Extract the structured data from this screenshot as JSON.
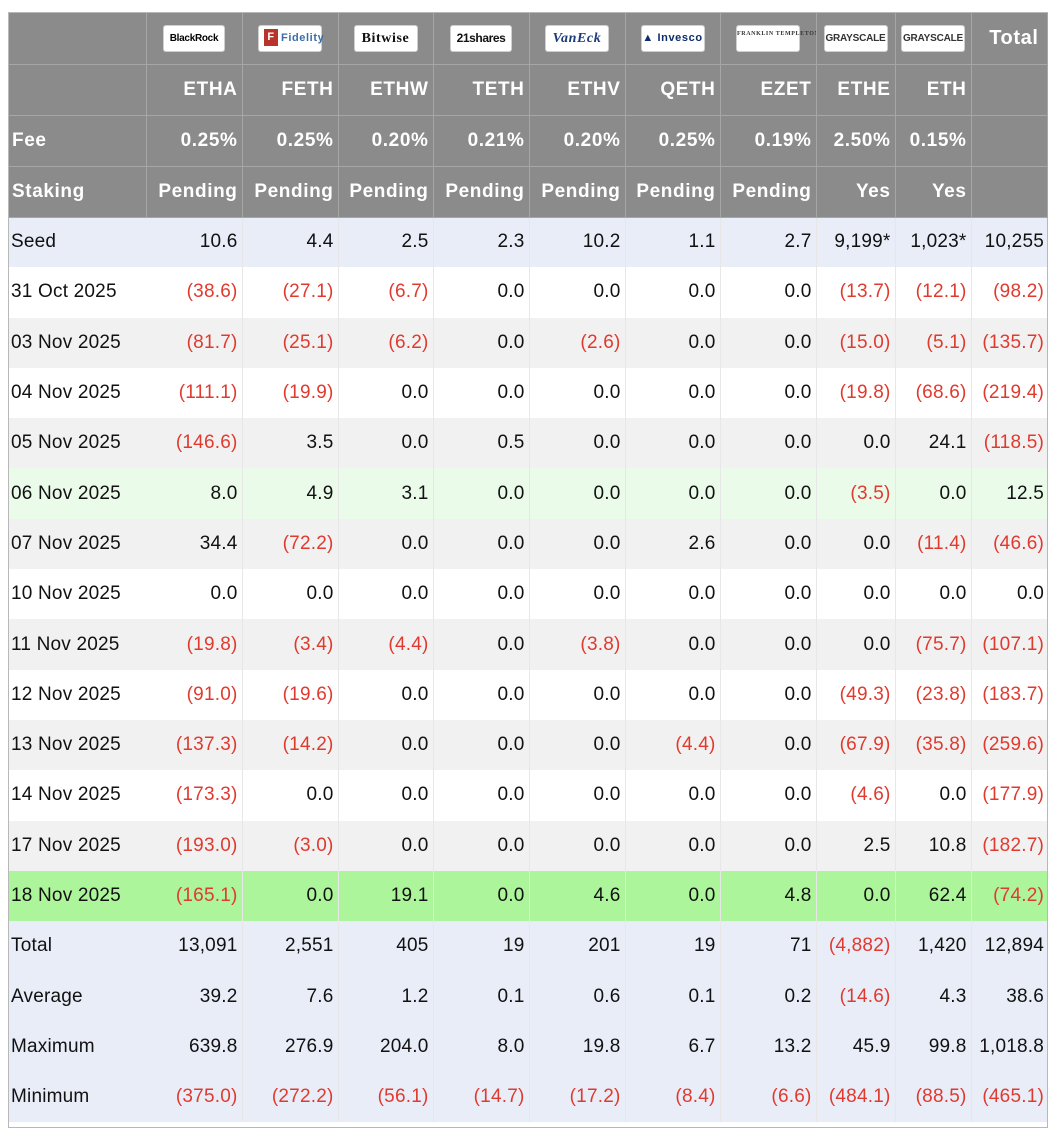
{
  "header": {
    "logos": [
      {
        "text": "BlackRock",
        "icon": "blackrock-logo"
      },
      {
        "text": "Fidelity",
        "icon": "fidelity-logo"
      },
      {
        "text": "Bitwise",
        "icon": "bitwise-logo"
      },
      {
        "text": "21shares",
        "icon": "21shares-logo"
      },
      {
        "text": "VanEck",
        "icon": "vaneck-logo"
      },
      {
        "text": "Invesco",
        "icon": "invesco-logo"
      },
      {
        "text": "FRANKLIN TEMPLETON",
        "icon": "franklin-templeton-logo"
      },
      {
        "text": "GRAYSCALE",
        "icon": "grayscale-logo"
      },
      {
        "text": "GRAYSCALE",
        "icon": "grayscale-logo"
      }
    ],
    "total_label": "Total",
    "tickers": [
      "ETHA",
      "FETH",
      "ETHW",
      "TETH",
      "ETHV",
      "QETH",
      "EZET",
      "ETHE",
      "ETH"
    ],
    "fee_label": "Fee",
    "fees": [
      "0.25%",
      "0.25%",
      "0.20%",
      "0.21%",
      "0.20%",
      "0.25%",
      "0.19%",
      "2.50%",
      "0.15%"
    ],
    "staking_label": "Staking",
    "staking": [
      "Pending",
      "Pending",
      "Pending",
      "Pending",
      "Pending",
      "Pending",
      "Pending",
      "Yes",
      "Yes"
    ]
  },
  "rows": [
    {
      "label": "Seed",
      "style": "seed",
      "values": [
        "10.6",
        "4.4",
        "2.5",
        "2.3",
        "10.2",
        "1.1",
        "2.7",
        "9,199*",
        "1,023*",
        "10,255"
      ]
    },
    {
      "label": "31 Oct 2025",
      "style": "white",
      "values": [
        "(38.6)",
        "(27.1)",
        "(6.7)",
        "0.0",
        "0.0",
        "0.0",
        "0.0",
        "(13.7)",
        "(12.1)",
        "(98.2)"
      ]
    },
    {
      "label": "03 Nov 2025",
      "style": "gray",
      "values": [
        "(81.7)",
        "(25.1)",
        "(6.2)",
        "0.0",
        "(2.6)",
        "0.0",
        "0.0",
        "(15.0)",
        "(5.1)",
        "(135.7)"
      ]
    },
    {
      "label": "04 Nov 2025",
      "style": "white",
      "values": [
        "(111.1)",
        "(19.9)",
        "0.0",
        "0.0",
        "0.0",
        "0.0",
        "0.0",
        "(19.8)",
        "(68.6)",
        "(219.4)"
      ]
    },
    {
      "label": "05 Nov 2025",
      "style": "gray",
      "values": [
        "(146.6)",
        "3.5",
        "0.0",
        "0.5",
        "0.0",
        "0.0",
        "0.0",
        "0.0",
        "24.1",
        "(118.5)"
      ]
    },
    {
      "label": "06 Nov 2025",
      "style": "lightgreen",
      "values": [
        "8.0",
        "4.9",
        "3.1",
        "0.0",
        "0.0",
        "0.0",
        "0.0",
        "(3.5)",
        "0.0",
        "12.5"
      ]
    },
    {
      "label": "07 Nov 2025",
      "style": "gray",
      "values": [
        "34.4",
        "(72.2)",
        "0.0",
        "0.0",
        "0.0",
        "2.6",
        "0.0",
        "0.0",
        "(11.4)",
        "(46.6)"
      ]
    },
    {
      "label": "10 Nov 2025",
      "style": "white",
      "values": [
        "0.0",
        "0.0",
        "0.0",
        "0.0",
        "0.0",
        "0.0",
        "0.0",
        "0.0",
        "0.0",
        "0.0"
      ]
    },
    {
      "label": "11 Nov 2025",
      "style": "gray",
      "values": [
        "(19.8)",
        "(3.4)",
        "(4.4)",
        "0.0",
        "(3.8)",
        "0.0",
        "0.0",
        "0.0",
        "(75.7)",
        "(107.1)"
      ]
    },
    {
      "label": "12 Nov 2025",
      "style": "white",
      "values": [
        "(91.0)",
        "(19.6)",
        "0.0",
        "0.0",
        "0.0",
        "0.0",
        "0.0",
        "(49.3)",
        "(23.8)",
        "(183.7)"
      ]
    },
    {
      "label": "13 Nov 2025",
      "style": "gray",
      "values": [
        "(137.3)",
        "(14.2)",
        "0.0",
        "0.0",
        "0.0",
        "(4.4)",
        "0.0",
        "(67.9)",
        "(35.8)",
        "(259.6)"
      ]
    },
    {
      "label": "14 Nov 2025",
      "style": "white",
      "values": [
        "(173.3)",
        "0.0",
        "0.0",
        "0.0",
        "0.0",
        "0.0",
        "0.0",
        "(4.6)",
        "0.0",
        "(177.9)"
      ]
    },
    {
      "label": "17 Nov 2025",
      "style": "gray",
      "values": [
        "(193.0)",
        "(3.0)",
        "0.0",
        "0.0",
        "0.0",
        "0.0",
        "0.0",
        "2.5",
        "10.8",
        "(182.7)"
      ]
    },
    {
      "label": "18 Nov 2025",
      "style": "green",
      "values": [
        "(165.1)",
        "0.0",
        "19.1",
        "0.0",
        "4.6",
        "0.0",
        "4.8",
        "0.0",
        "62.4",
        "(74.2)"
      ]
    },
    {
      "label": "Total",
      "style": "summary",
      "values": [
        "13,091",
        "2,551",
        "405",
        "19",
        "201",
        "19",
        "71",
        "(4,882)",
        "1,420",
        "12,894"
      ]
    },
    {
      "label": "Average",
      "style": "summary",
      "values": [
        "39.2",
        "7.6",
        "1.2",
        "0.1",
        "0.6",
        "0.1",
        "0.2",
        "(14.6)",
        "4.3",
        "38.6"
      ]
    },
    {
      "label": "Maximum",
      "style": "summary",
      "values": [
        "639.8",
        "276.9",
        "204.0",
        "8.0",
        "19.8",
        "6.7",
        "13.2",
        "45.9",
        "99.8",
        "1,018.8"
      ]
    },
    {
      "label": "Minimum",
      "style": "summary",
      "values": [
        "(375.0)",
        "(272.2)",
        "(56.1)",
        "(14.7)",
        "(17.2)",
        "(8.4)",
        "(6.6)",
        "(484.1)",
        "(88.5)",
        "(465.1)"
      ]
    }
  ],
  "colors": {
    "header_bg": "#8b8b8b",
    "negative": "#e03a2f",
    "highlight_green": "#adf59a",
    "light_green": "#ebfbea",
    "summary_bg": "#e9edf8"
  }
}
